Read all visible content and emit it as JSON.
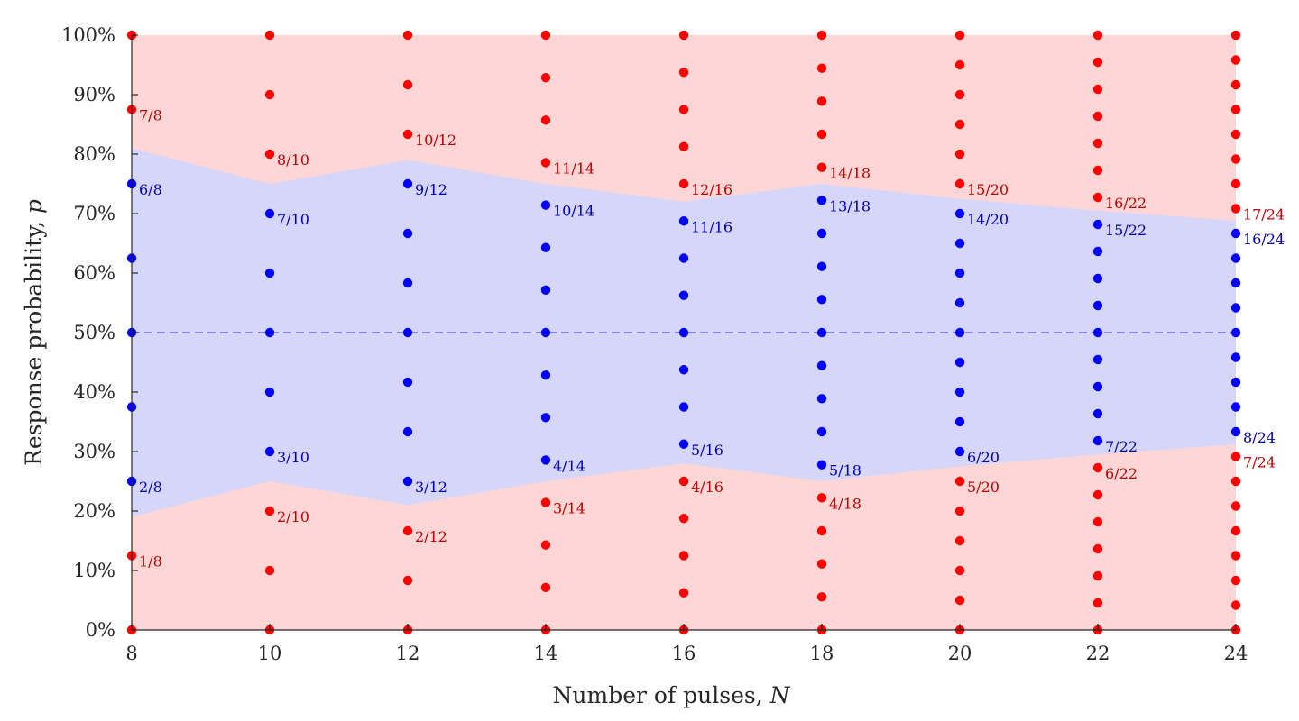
{
  "chart_data": {
    "type": "scatter",
    "xlabel": "Number of pulses, ",
    "xlabel_var": "N",
    "ylabel": "Response probability, ",
    "ylabel_var": "p",
    "xlim": [
      8,
      24
    ],
    "ylim": [
      0,
      1
    ],
    "x_ticks": [
      8,
      10,
      12,
      14,
      16,
      18,
      20,
      22,
      24
    ],
    "y_ticks": [
      {
        "value": 0,
        "label": "0%"
      },
      {
        "value": 0.1,
        "label": "10%"
      },
      {
        "value": 0.2,
        "label": "20%"
      },
      {
        "value": 0.3,
        "label": "30%"
      },
      {
        "value": 0.4,
        "label": "40%"
      },
      {
        "value": 0.5,
        "label": "50%"
      },
      {
        "value": 0.6,
        "label": "60%"
      },
      {
        "value": 0.7,
        "label": "70%"
      },
      {
        "value": 0.8,
        "label": "80%"
      },
      {
        "value": 0.9,
        "label": "90%"
      },
      {
        "value": 1,
        "label": "100%"
      }
    ],
    "reference_line": {
      "y": 0.5,
      "style": "dashed"
    },
    "band": {
      "x": [
        8,
        10,
        12,
        14,
        16,
        18,
        20,
        22,
        24
      ],
      "lower": [
        0.19,
        0.25,
        0.21,
        0.25,
        0.28,
        0.25,
        0.275,
        0.295,
        0.312
      ],
      "upper": [
        0.81,
        0.75,
        0.79,
        0.75,
        0.72,
        0.75,
        0.725,
        0.705,
        0.688
      ]
    },
    "pulse_counts": [
      8,
      10,
      12,
      14,
      16,
      18,
      20,
      22,
      24
    ],
    "labels": [
      {
        "n": 8,
        "k": 1,
        "text": "1/8"
      },
      {
        "n": 8,
        "k": 2,
        "text": "2/8"
      },
      {
        "n": 8,
        "k": 6,
        "text": "6/8"
      },
      {
        "n": 8,
        "k": 7,
        "text": "7/8"
      },
      {
        "n": 10,
        "k": 2,
        "text": "2/10"
      },
      {
        "n": 10,
        "k": 3,
        "text": "3/10"
      },
      {
        "n": 10,
        "k": 7,
        "text": "7/10"
      },
      {
        "n": 10,
        "k": 8,
        "text": "8/10"
      },
      {
        "n": 12,
        "k": 2,
        "text": "2/12"
      },
      {
        "n": 12,
        "k": 3,
        "text": "3/12"
      },
      {
        "n": 12,
        "k": 9,
        "text": "9/12"
      },
      {
        "n": 12,
        "k": 10,
        "text": "10/12"
      },
      {
        "n": 14,
        "k": 3,
        "text": "3/14"
      },
      {
        "n": 14,
        "k": 4,
        "text": "4/14"
      },
      {
        "n": 14,
        "k": 10,
        "text": "10/14"
      },
      {
        "n": 14,
        "k": 11,
        "text": "11/14"
      },
      {
        "n": 16,
        "k": 4,
        "text": "4/16"
      },
      {
        "n": 16,
        "k": 5,
        "text": "5/16"
      },
      {
        "n": 16,
        "k": 11,
        "text": "11/16"
      },
      {
        "n": 16,
        "k": 12,
        "text": "12/16"
      },
      {
        "n": 18,
        "k": 4,
        "text": "4/18"
      },
      {
        "n": 18,
        "k": 5,
        "text": "5/18"
      },
      {
        "n": 18,
        "k": 13,
        "text": "13/18"
      },
      {
        "n": 18,
        "k": 14,
        "text": "14/18"
      },
      {
        "n": 20,
        "k": 5,
        "text": "5/20"
      },
      {
        "n": 20,
        "k": 6,
        "text": "6/20"
      },
      {
        "n": 20,
        "k": 14,
        "text": "14/20"
      },
      {
        "n": 20,
        "k": 15,
        "text": "15/20"
      },
      {
        "n": 22,
        "k": 6,
        "text": "6/22"
      },
      {
        "n": 22,
        "k": 7,
        "text": "7/22"
      },
      {
        "n": 22,
        "k": 15,
        "text": "15/22"
      },
      {
        "n": 22,
        "k": 16,
        "text": "16/22"
      },
      {
        "n": 24,
        "k": 7,
        "text": "7/24"
      },
      {
        "n": 24,
        "k": 8,
        "text": "8/24"
      },
      {
        "n": 24,
        "k": 16,
        "text": "16/24"
      },
      {
        "n": 24,
        "k": 17,
        "text": "17/24"
      }
    ],
    "colors": {
      "inside_point": "#0000ff",
      "outside_point": "#ff0000",
      "inside_label": "#0000b3",
      "outside_label": "#c00000",
      "band_fill": "#d6d6fa",
      "background_fill": "#ffd6d6",
      "reference_line": "#6b6bd9",
      "axis": "#262626"
    },
    "grid": false,
    "legend": "none"
  }
}
